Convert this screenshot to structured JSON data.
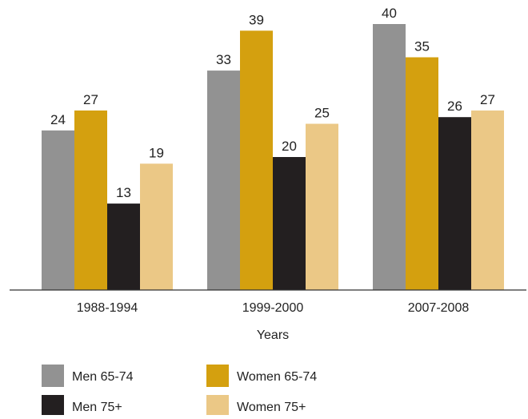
{
  "chart_data": {
    "type": "bar",
    "categories": [
      "1988-1994",
      "1999-2000",
      "2007-2008"
    ],
    "series": [
      {
        "name": "Men 65-74",
        "values": [
          24,
          33,
          40
        ],
        "color": "#929292"
      },
      {
        "name": "Women 65-74",
        "values": [
          27,
          39,
          35
        ],
        "color": "#d4a00f"
      },
      {
        "name": "Men 75+",
        "values": [
          13,
          20,
          26
        ],
        "color": "#231f20"
      },
      {
        "name": "Women 75+",
        "values": [
          19,
          25,
          27
        ],
        "color": "#ebc886"
      }
    ],
    "xlabel": "Years",
    "ylabel": "",
    "ylim": [
      0,
      40
    ],
    "grid": false,
    "legend_position": "bottom-left",
    "data_labels": true
  }
}
